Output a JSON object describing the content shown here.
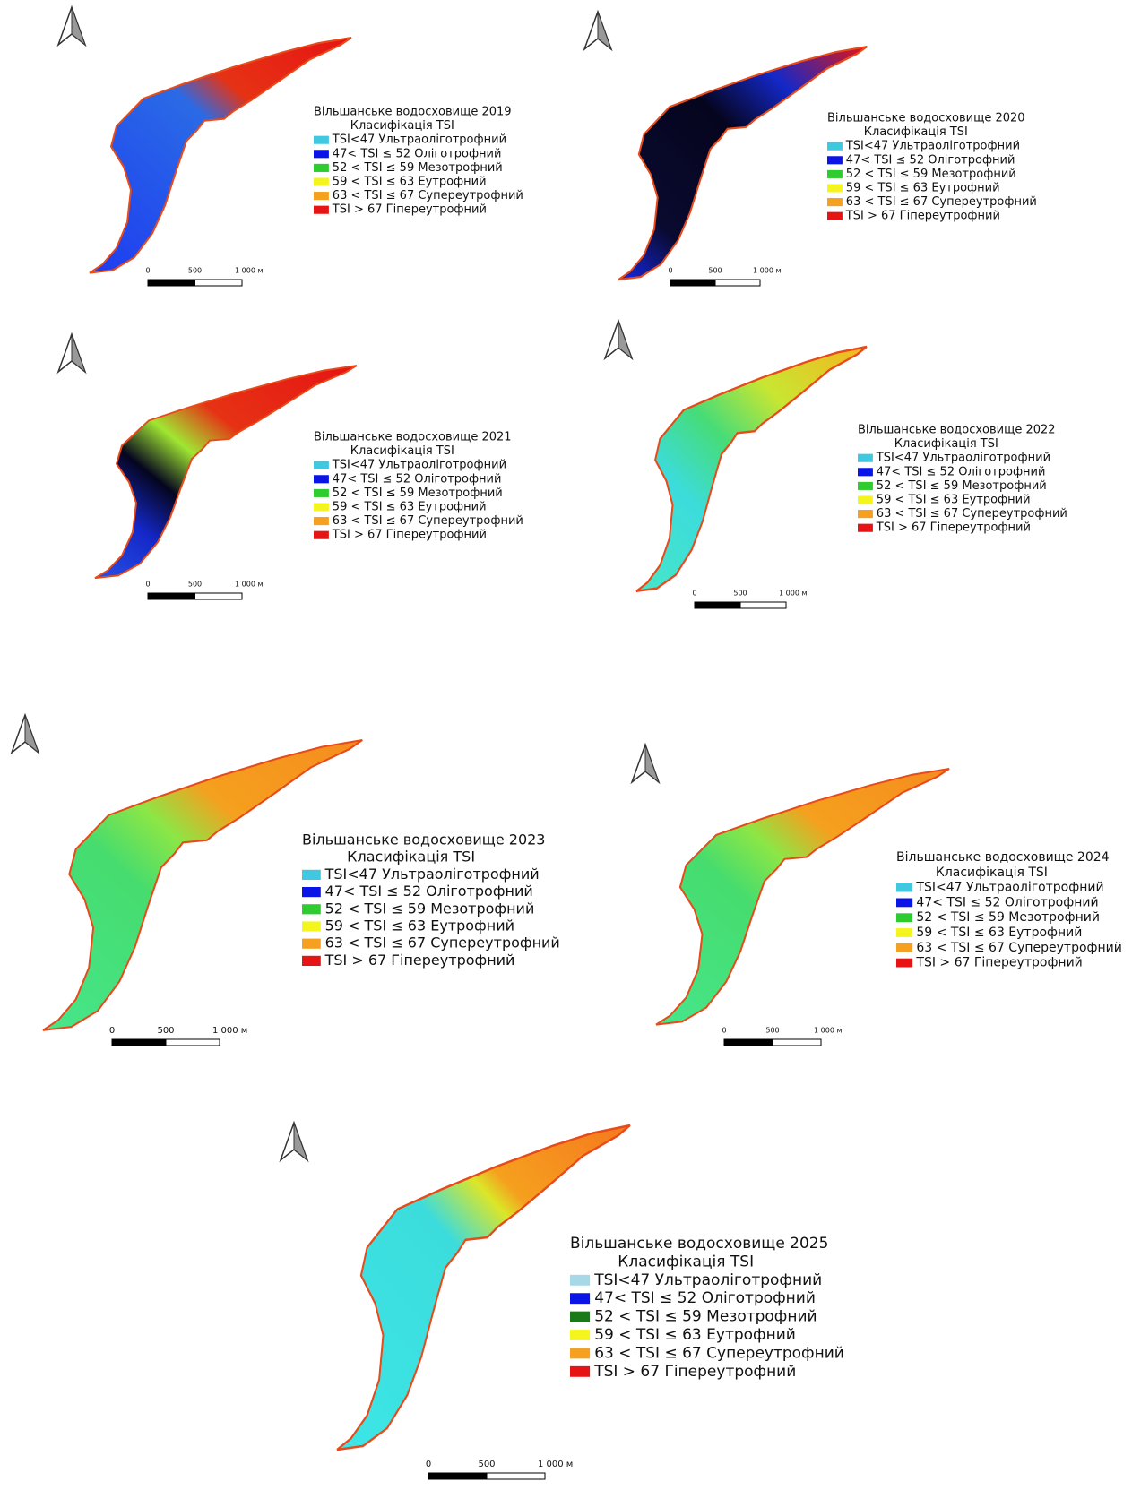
{
  "panels": [
    {
      "title": "Вільшанське водосховище 2019",
      "subtitle": "Класифікація TSI",
      "legend": [
        {
          "label": "TSI<47 Ультраоліготрофний",
          "color": "#3fc8e0"
        },
        {
          "label": "47< TSI ≤ 52 Оліготрофний",
          "color": "#0a14e6"
        },
        {
          "label": "52 < TSI ≤ 59 Мезотрофний",
          "color": "#2ecc2e"
        },
        {
          "label": "59 < TSI ≤ 63 Еутрофний",
          "color": "#f5f51e"
        },
        {
          "label": "63 < TSI ≤ 67 Супереутрофний",
          "color": "#f5a01e"
        },
        {
          "label": "TSI > 67 Гіпереутрофний",
          "color": "#e61414"
        }
      ],
      "scale": [
        "0",
        "500",
        "1 000 м"
      ]
    },
    {
      "title": "Вільшанське водосховище 2020",
      "subtitle": "Класифікація TSI",
      "legend": [
        {
          "label": "TSI<47 Ультраоліготрофний",
          "color": "#3fc8e0"
        },
        {
          "label": "47< TSI ≤ 52 Оліготрофний",
          "color": "#0a14e6"
        },
        {
          "label": "52 < TSI ≤ 59 Мезотрофний",
          "color": "#2ecc2e"
        },
        {
          "label": "59 < TSI ≤ 63 Еутрофний",
          "color": "#f5f51e"
        },
        {
          "label": "63 < TSI ≤ 67 Супереутрофний",
          "color": "#f5a01e"
        },
        {
          "label": "TSI > 67 Гіпереутрофний",
          "color": "#e61414"
        }
      ],
      "scale": [
        "0",
        "500",
        "1 000 м"
      ]
    },
    {
      "title": "Вільшанське водосховище 2021",
      "subtitle": "Класифікація TSI",
      "legend": [
        {
          "label": "TSI<47 Ультраоліготрофний",
          "color": "#3fc8e0"
        },
        {
          "label": "47< TSI ≤ 52 Оліготрофний",
          "color": "#0a14e6"
        },
        {
          "label": "52 < TSI ≤ 59 Мезотрофний",
          "color": "#2ecc2e"
        },
        {
          "label": "59 < TSI ≤ 63 Еутрофний",
          "color": "#f5f51e"
        },
        {
          "label": "63 < TSI ≤ 67 Супереутрофний",
          "color": "#f5a01e"
        },
        {
          "label": "TSI > 67 Гіпереутрофний",
          "color": "#e61414"
        }
      ],
      "scale": [
        "0",
        "500",
        "1 000 м"
      ]
    },
    {
      "title": "Вільшанське водосховище 2022",
      "subtitle": "Класифікація TSI",
      "legend": [
        {
          "label": "TSI<47 Ультраоліготрофний",
          "color": "#3fc8e0"
        },
        {
          "label": "47< TSI ≤ 52 Оліготрофний",
          "color": "#0a14e6"
        },
        {
          "label": "52 < TSI ≤ 59 Мезотрофний",
          "color": "#2ecc2e"
        },
        {
          "label": "59 < TSI ≤ 63 Еутрофний",
          "color": "#f5f51e"
        },
        {
          "label": "63 < TSI ≤ 67 Супереутрофний",
          "color": "#f5a01e"
        },
        {
          "label": "TSI > 67 Гіпереутрофний",
          "color": "#e61414"
        }
      ],
      "scale": [
        "0",
        "500",
        "1 000 м"
      ]
    },
    {
      "title": "Вільшанське водосховище 2023",
      "subtitle": "Класифікація TSI",
      "legend": [
        {
          "label": "TSI<47 Ультраоліготрофний",
          "color": "#3fc8e0"
        },
        {
          "label": "47< TSI ≤ 52 Оліготрофний",
          "color": "#0a14e6"
        },
        {
          "label": "52 < TSI ≤ 59 Мезотрофний",
          "color": "#2ecc2e"
        },
        {
          "label": "59 < TSI ≤ 63 Еутрофний",
          "color": "#f5f51e"
        },
        {
          "label": "63 < TSI ≤ 67 Супереутрофний",
          "color": "#f5a01e"
        },
        {
          "label": "TSI > 67 Гіпереутрофний",
          "color": "#e61414"
        }
      ],
      "scale": [
        "0",
        "500",
        "1 000 м"
      ]
    },
    {
      "title": "Вільшанське водосховище 2024",
      "subtitle": "Класифікація TSI",
      "legend": [
        {
          "label": "TSI<47 Ультраоліготрофний",
          "color": "#3fc8e0"
        },
        {
          "label": "47< TSI ≤ 52 Оліготрофний",
          "color": "#0a14e6"
        },
        {
          "label": "52 < TSI ≤ 59 Мезотрофний",
          "color": "#2ecc2e"
        },
        {
          "label": "59 < TSI ≤ 63 Еутрофний",
          "color": "#f5f51e"
        },
        {
          "label": "63 < TSI ≤ 67 Супереутрофний",
          "color": "#f5a01e"
        },
        {
          "label": "TSI > 67 Гіпереутрофний",
          "color": "#e61414"
        }
      ],
      "scale": [
        "0",
        "500",
        "1 000 м"
      ]
    },
    {
      "title": "Вільшанське водосховище 2025",
      "subtitle": "Класифікація TSI",
      "legend": [
        {
          "label": "TSI<47 Ультраоліготрофний",
          "color": "#a6d8e8"
        },
        {
          "label": "47< TSI ≤ 52 Оліготрофний",
          "color": "#0a14e6"
        },
        {
          "label": "52 < TSI ≤ 59 Мезотрофний",
          "color": "#1a7a1a"
        },
        {
          "label": "59 < TSI ≤ 63 Еутрофний",
          "color": "#f5f51e"
        },
        {
          "label": "63 < TSI ≤ 67 Супереутрофний",
          "color": "#f5a01e"
        },
        {
          "label": "TSI > 67 Гіпереутрофний",
          "color": "#e61414"
        }
      ],
      "scale": [
        "0",
        "500",
        "1 000 м"
      ]
    }
  ]
}
